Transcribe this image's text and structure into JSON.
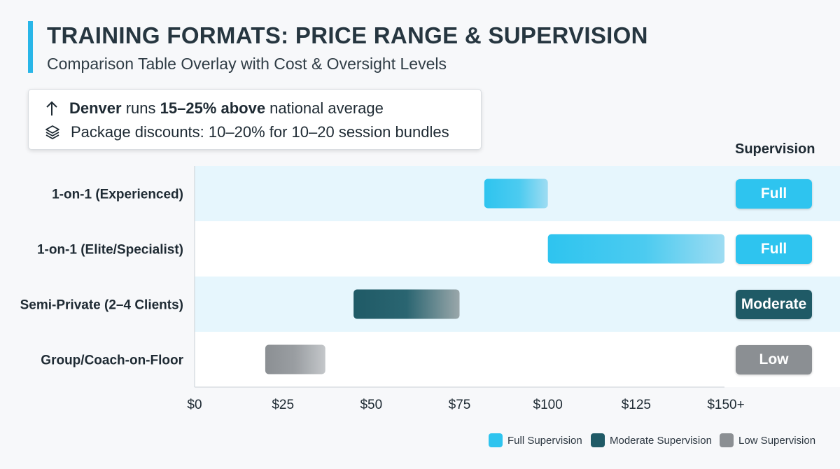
{
  "header": {
    "title": "TRAINING FORMATS: PRICE RANGE & SUPERVISION",
    "subtitle": "Comparison Table Overlay with Cost & Oversight Levels"
  },
  "callout": {
    "line1": {
      "icon": "arrow-up-icon",
      "bold_city": "Denver",
      "text_a": " runs ",
      "bold_pct": "15–25% above",
      "text_b": " national average"
    },
    "line2": {
      "icon": "layers-icon",
      "text": "Package discounts: 10–20% for 10–20 session bundles"
    }
  },
  "supervision_header": "Supervision",
  "colors": {
    "full": "#2ec4ef",
    "moderate": "#1f5a66",
    "low": "#8b8f93",
    "band": "#e6f6fd",
    "accent": "#29b6e8"
  },
  "chart_data": {
    "type": "bar",
    "orientation": "horizontal-range",
    "categories": [
      "1-on-1 (Experienced)",
      "1-on-1 (Elite/Specialist)",
      "Semi-Private (2–4 Clients)",
      "Group/Coach-on-Floor"
    ],
    "ranges": [
      {
        "category": "1-on-1 (Experienced)",
        "low": 82,
        "high": 100,
        "supervision": "Full"
      },
      {
        "category": "1-on-1 (Elite/Specialist)",
        "low": 100,
        "high": 150,
        "supervision": "Full"
      },
      {
        "category": "Semi-Private (2–4 Clients)",
        "low": 45,
        "high": 75,
        "supervision": "Moderate"
      },
      {
        "category": "Group/Coach-on-Floor",
        "low": 20,
        "high": 37,
        "supervision": "Low"
      }
    ],
    "x_ticks": [
      0,
      25,
      50,
      75,
      100,
      125,
      150
    ],
    "x_tick_labels": [
      "$0",
      "$25",
      "$50",
      "$75",
      "$100",
      "$125",
      "$150+"
    ],
    "xlim": [
      0,
      175
    ],
    "legend": [
      {
        "label": "Full Supervision",
        "level": "full"
      },
      {
        "label": "Moderate Supervision",
        "level": "moderate"
      },
      {
        "label": "Low Supervision",
        "level": "low"
      }
    ],
    "legend_position": "bottom-right"
  }
}
